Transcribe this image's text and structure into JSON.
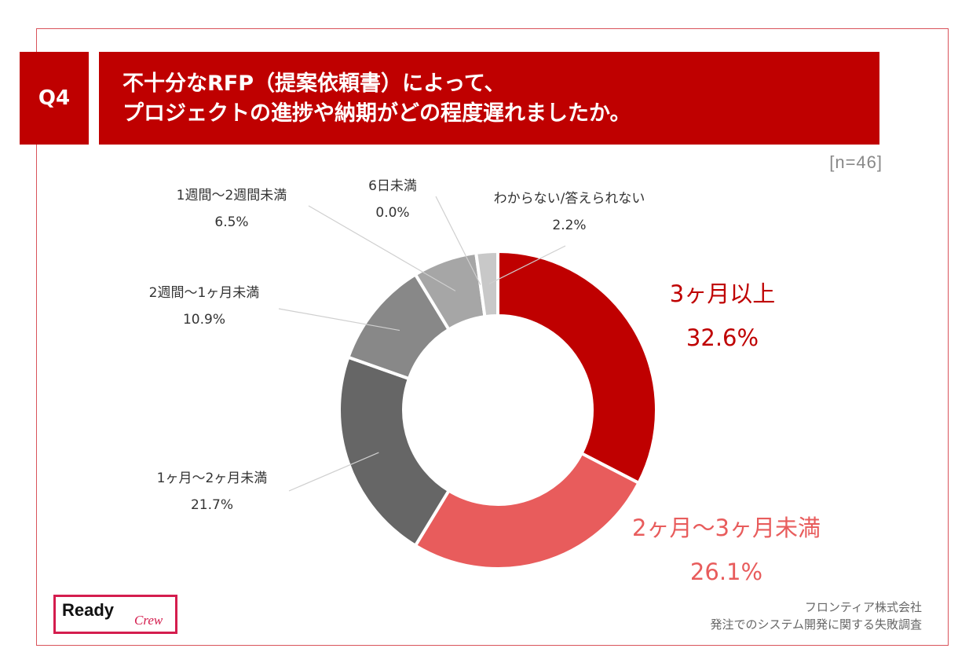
{
  "header": {
    "question_no": "Q4",
    "title_line1": "不十分なRFP（提案依頼書）によって、",
    "title_line2": "プロジェクトの進捗や納期がどの程度遅れましたか。"
  },
  "sample_size": "[n=46]",
  "chart_data": {
    "type": "pie",
    "variant": "donut",
    "slices": [
      {
        "label": "3ヶ月以上",
        "value": 32.6,
        "text": "32.6%",
        "color": "#bf0000"
      },
      {
        "label": "2ヶ月〜3ヶ月未満",
        "value": 26.1,
        "text": "26.1%",
        "color": "#e85c5c"
      },
      {
        "label": "1ヶ月〜2ヶ月未満",
        "value": 21.7,
        "text": "21.7%",
        "color": "#666666"
      },
      {
        "label": "2週間〜1ヶ月未満",
        "value": 10.9,
        "text": "10.9%",
        "color": "#888888"
      },
      {
        "label": "1週間〜2週間未満",
        "value": 6.5,
        "text": "6.5%",
        "color": "#a6a6a6"
      },
      {
        "label": "6日未満",
        "value": 0.0,
        "text": "0.0%",
        "color": "#c0c0c0"
      },
      {
        "label": "わからない/答えられない",
        "value": 2.2,
        "text": "2.2%",
        "color": "#c8c8c8"
      }
    ]
  },
  "footer": {
    "logo_ready": "Ready",
    "logo_crew": "Crew",
    "source_line1": "フロンティア株式会社",
    "source_line2": "発注でのシステム開発に関する失敗調査"
  },
  "colors": {
    "brand_red": "#bf0000",
    "accent_pink": "#e85c5c",
    "frame": "#d9535b"
  }
}
